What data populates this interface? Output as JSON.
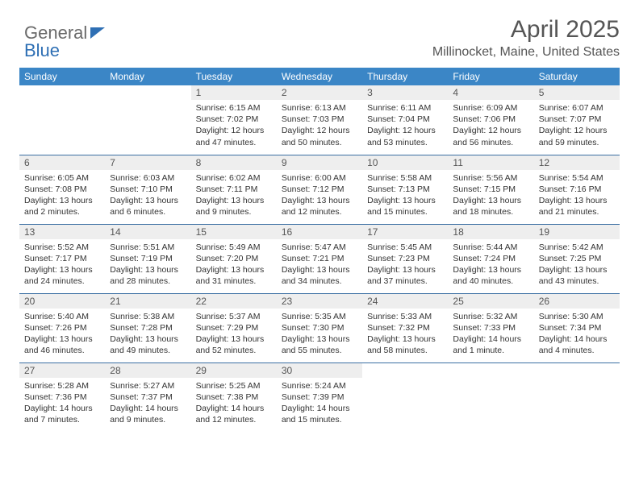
{
  "brand": {
    "part1": "General",
    "part2": "Blue"
  },
  "title": "April 2025",
  "location": "Millinocket, Maine, United States",
  "colors": {
    "header_bg": "#3b86c6",
    "header_text": "#ffffff",
    "daynum_bg": "#eeeeee",
    "divider": "#3b6fa3",
    "brand_gray": "#6a6a6a",
    "brand_blue": "#2e6fb4"
  },
  "weekdays": [
    "Sunday",
    "Monday",
    "Tuesday",
    "Wednesday",
    "Thursday",
    "Friday",
    "Saturday"
  ],
  "weeks": [
    [
      null,
      null,
      {
        "n": "1",
        "sr": "6:15 AM",
        "ss": "7:02 PM",
        "dl": "12 hours and 47 minutes."
      },
      {
        "n": "2",
        "sr": "6:13 AM",
        "ss": "7:03 PM",
        "dl": "12 hours and 50 minutes."
      },
      {
        "n": "3",
        "sr": "6:11 AM",
        "ss": "7:04 PM",
        "dl": "12 hours and 53 minutes."
      },
      {
        "n": "4",
        "sr": "6:09 AM",
        "ss": "7:06 PM",
        "dl": "12 hours and 56 minutes."
      },
      {
        "n": "5",
        "sr": "6:07 AM",
        "ss": "7:07 PM",
        "dl": "12 hours and 59 minutes."
      }
    ],
    [
      {
        "n": "6",
        "sr": "6:05 AM",
        "ss": "7:08 PM",
        "dl": "13 hours and 2 minutes."
      },
      {
        "n": "7",
        "sr": "6:03 AM",
        "ss": "7:10 PM",
        "dl": "13 hours and 6 minutes."
      },
      {
        "n": "8",
        "sr": "6:02 AM",
        "ss": "7:11 PM",
        "dl": "13 hours and 9 minutes."
      },
      {
        "n": "9",
        "sr": "6:00 AM",
        "ss": "7:12 PM",
        "dl": "13 hours and 12 minutes."
      },
      {
        "n": "10",
        "sr": "5:58 AM",
        "ss": "7:13 PM",
        "dl": "13 hours and 15 minutes."
      },
      {
        "n": "11",
        "sr": "5:56 AM",
        "ss": "7:15 PM",
        "dl": "13 hours and 18 minutes."
      },
      {
        "n": "12",
        "sr": "5:54 AM",
        "ss": "7:16 PM",
        "dl": "13 hours and 21 minutes."
      }
    ],
    [
      {
        "n": "13",
        "sr": "5:52 AM",
        "ss": "7:17 PM",
        "dl": "13 hours and 24 minutes."
      },
      {
        "n": "14",
        "sr": "5:51 AM",
        "ss": "7:19 PM",
        "dl": "13 hours and 28 minutes."
      },
      {
        "n": "15",
        "sr": "5:49 AM",
        "ss": "7:20 PM",
        "dl": "13 hours and 31 minutes."
      },
      {
        "n": "16",
        "sr": "5:47 AM",
        "ss": "7:21 PM",
        "dl": "13 hours and 34 minutes."
      },
      {
        "n": "17",
        "sr": "5:45 AM",
        "ss": "7:23 PM",
        "dl": "13 hours and 37 minutes."
      },
      {
        "n": "18",
        "sr": "5:44 AM",
        "ss": "7:24 PM",
        "dl": "13 hours and 40 minutes."
      },
      {
        "n": "19",
        "sr": "5:42 AM",
        "ss": "7:25 PM",
        "dl": "13 hours and 43 minutes."
      }
    ],
    [
      {
        "n": "20",
        "sr": "5:40 AM",
        "ss": "7:26 PM",
        "dl": "13 hours and 46 minutes."
      },
      {
        "n": "21",
        "sr": "5:38 AM",
        "ss": "7:28 PM",
        "dl": "13 hours and 49 minutes."
      },
      {
        "n": "22",
        "sr": "5:37 AM",
        "ss": "7:29 PM",
        "dl": "13 hours and 52 minutes."
      },
      {
        "n": "23",
        "sr": "5:35 AM",
        "ss": "7:30 PM",
        "dl": "13 hours and 55 minutes."
      },
      {
        "n": "24",
        "sr": "5:33 AM",
        "ss": "7:32 PM",
        "dl": "13 hours and 58 minutes."
      },
      {
        "n": "25",
        "sr": "5:32 AM",
        "ss": "7:33 PM",
        "dl": "14 hours and 1 minute."
      },
      {
        "n": "26",
        "sr": "5:30 AM",
        "ss": "7:34 PM",
        "dl": "14 hours and 4 minutes."
      }
    ],
    [
      {
        "n": "27",
        "sr": "5:28 AM",
        "ss": "7:36 PM",
        "dl": "14 hours and 7 minutes."
      },
      {
        "n": "28",
        "sr": "5:27 AM",
        "ss": "7:37 PM",
        "dl": "14 hours and 9 minutes."
      },
      {
        "n": "29",
        "sr": "5:25 AM",
        "ss": "7:38 PM",
        "dl": "14 hours and 12 minutes."
      },
      {
        "n": "30",
        "sr": "5:24 AM",
        "ss": "7:39 PM",
        "dl": "14 hours and 15 minutes."
      },
      null,
      null,
      null
    ]
  ],
  "labels": {
    "sunrise": "Sunrise:",
    "sunset": "Sunset:",
    "daylight": "Daylight:"
  }
}
